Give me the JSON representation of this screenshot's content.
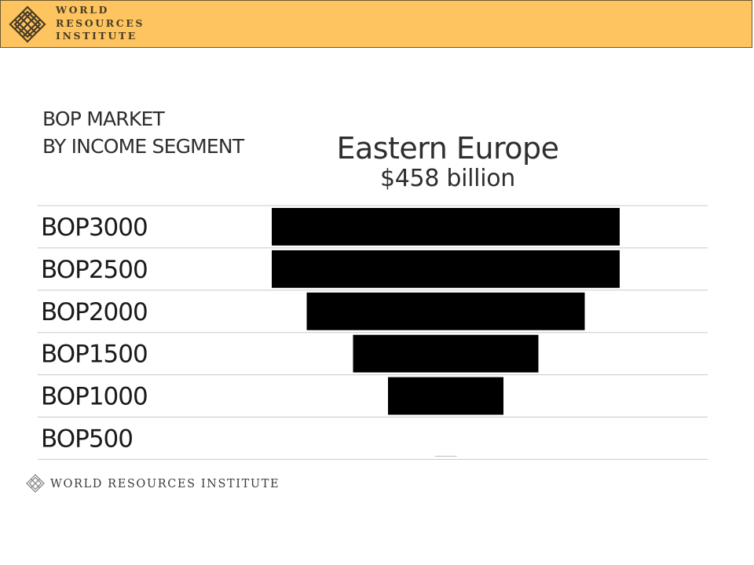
{
  "header": {
    "logo_icon": "wri-knot-icon",
    "logo_lines": [
      "WORLD",
      "RESOURCES",
      "INSTITUTE"
    ],
    "bg_color": "#fdc45f"
  },
  "slide": {
    "subtitle_lines": [
      "BOP MARKET",
      "BY INCOME SEGMENT"
    ]
  },
  "chart_data": {
    "type": "bar",
    "orientation": "horizontal-centered",
    "title": "Eastern Europe",
    "subtitle": "$458 billion",
    "categories": [
      "BOP3000",
      "BOP2500",
      "BOP2000",
      "BOP1500",
      "BOP1000",
      "BOP500"
    ],
    "values": [
      443,
      443,
      354,
      236,
      147,
      0
    ],
    "bar_color": "#000000",
    "grid": true
  },
  "footer": {
    "logo_icon": "wri-knot-icon",
    "text": "WORLD RESOURCES INSTITUTE"
  }
}
